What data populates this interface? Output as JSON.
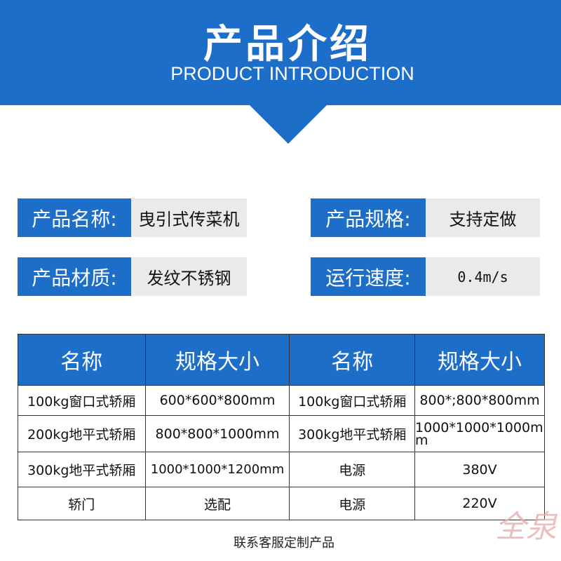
{
  "header": {
    "title": "产品介绍",
    "subtitle": "PRODUCT INTRODUCTION"
  },
  "info": [
    {
      "label": "产品名称:",
      "value": "曳引式传菜机"
    },
    {
      "label": "产品规格:",
      "value": "支持定做"
    },
    {
      "label": "产品材质:",
      "value": "发纹不锈钢"
    },
    {
      "label": "运行速度:",
      "value": "0.4m/s"
    }
  ],
  "table": {
    "headers": [
      "名称",
      "规格大小",
      "名称",
      "规格大小"
    ],
    "rows": [
      [
        "100kg窗口式轿厢",
        "600*600*800mm",
        "100kg窗口式轿厢",
        "800*;800*800mm"
      ],
      [
        "200kg地平式轿厢",
        "800*800*1000mm",
        "300kg地平式轿厢",
        "1000*1000*1000mm"
      ],
      [
        "300kg地平式轿厢",
        "1000*1000*1200mm",
        "电源",
        "380V"
      ],
      [
        "轿门",
        "选配",
        "电源",
        "220V"
      ]
    ]
  },
  "footer": "联系客服定制产品",
  "watermark": "全泉",
  "colors": {
    "brand_blue": "#1d6ec9",
    "value_bg": "#eaeaea"
  }
}
